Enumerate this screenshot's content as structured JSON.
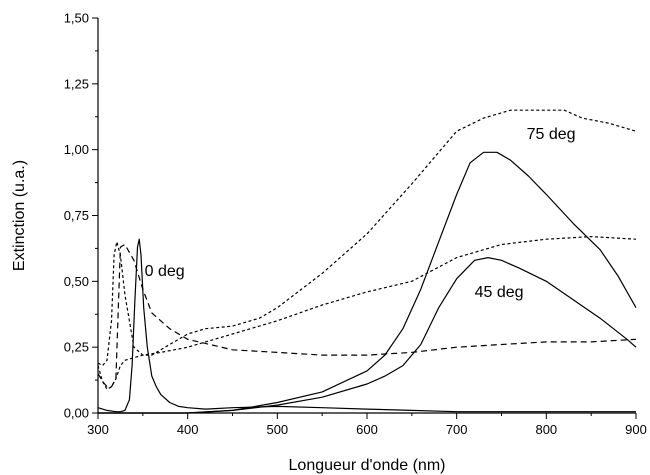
{
  "chart_data": {
    "type": "line",
    "title": "",
    "xlabel": "Longueur d'onde (nm)",
    "ylabel": "Extinction (u.a.)",
    "xlim": [
      300,
      900
    ],
    "ylim": [
      0,
      1.5
    ],
    "xticks": [
      300,
      400,
      500,
      600,
      700,
      800,
      900
    ],
    "yticks": [
      0,
      0.25,
      0.5,
      0.75,
      1.0,
      1.25,
      1.5
    ],
    "xtick_labels": [
      "300",
      "400",
      "500",
      "600",
      "700",
      "800",
      "900"
    ],
    "ytick_labels": [
      "0,00",
      "0,25",
      "0,50",
      "0,75",
      "1,00",
      "1,25",
      "1,50"
    ],
    "grid": false,
    "legend": "none",
    "annotations": [
      {
        "text": "0 deg",
        "x": 352,
        "y": 0.52
      },
      {
        "text": "45 deg",
        "x": 720,
        "y": 0.44
      },
      {
        "text": "75 deg",
        "x": 778,
        "y": 1.04
      }
    ],
    "series": [
      {
        "style": "solid",
        "x": [
          300,
          310,
          320,
          325,
          330,
          335,
          338,
          341,
          344,
          346,
          348,
          351,
          355,
          360,
          365,
          370,
          380,
          390,
          400,
          420,
          450,
          500,
          550,
          600,
          650,
          700,
          750,
          800,
          850,
          900
        ],
        "y": [
          0.02,
          0.01,
          0.005,
          0.005,
          0.01,
          0.05,
          0.18,
          0.42,
          0.63,
          0.66,
          0.6,
          0.4,
          0.25,
          0.14,
          0.1,
          0.07,
          0.04,
          0.025,
          0.02,
          0.015,
          0.02,
          0.025,
          0.02,
          0.015,
          0.01,
          0.005,
          0.005,
          0.005,
          0.005,
          0.005
        ]
      },
      {
        "style": "solid",
        "x": [
          300,
          350,
          400,
          450,
          500,
          550,
          600,
          620,
          640,
          660,
          680,
          700,
          720,
          735,
          750,
          770,
          800,
          830,
          860,
          890,
          900
        ],
        "y": [
          0.0,
          0.0,
          0.0,
          0.01,
          0.03,
          0.06,
          0.11,
          0.14,
          0.18,
          0.26,
          0.4,
          0.51,
          0.58,
          0.59,
          0.58,
          0.55,
          0.5,
          0.43,
          0.36,
          0.28,
          0.25
        ]
      },
      {
        "style": "solid",
        "x": [
          300,
          350,
          400,
          450,
          500,
          550,
          600,
          620,
          640,
          660,
          680,
          700,
          715,
          730,
          745,
          760,
          780,
          800,
          830,
          860,
          880,
          900
        ],
        "y": [
          0.0,
          0.0,
          0.0,
          0.01,
          0.04,
          0.08,
          0.16,
          0.22,
          0.32,
          0.47,
          0.65,
          0.83,
          0.95,
          0.99,
          0.99,
          0.96,
          0.9,
          0.83,
          0.72,
          0.62,
          0.52,
          0.4
        ]
      },
      {
        "style": "dashed",
        "x": [
          300,
          305,
          310,
          315,
          320,
          325,
          330,
          340,
          350,
          360,
          380,
          400,
          450,
          500,
          550,
          600,
          650,
          700,
          750,
          800,
          850,
          900
        ],
        "y": [
          0.15,
          0.12,
          0.1,
          0.1,
          0.13,
          0.63,
          0.64,
          0.58,
          0.47,
          0.38,
          0.32,
          0.28,
          0.24,
          0.23,
          0.22,
          0.22,
          0.23,
          0.25,
          0.26,
          0.27,
          0.27,
          0.28
        ]
      },
      {
        "style": "dotted",
        "x": [
          300,
          305,
          310,
          315,
          320,
          325,
          330,
          340,
          350,
          370,
          400,
          450,
          500,
          550,
          600,
          650,
          700,
          750,
          800,
          850,
          900
        ],
        "y": [
          0.18,
          0.12,
          0.09,
          0.1,
          0.13,
          0.18,
          0.2,
          0.21,
          0.22,
          0.23,
          0.25,
          0.3,
          0.35,
          0.41,
          0.46,
          0.5,
          0.59,
          0.64,
          0.66,
          0.67,
          0.66
        ]
      },
      {
        "style": "dotted",
        "x": [
          300,
          305,
          310,
          315,
          318,
          321,
          325,
          330,
          340,
          350,
          360,
          380,
          400,
          420,
          450,
          480,
          500,
          550,
          600,
          650,
          700,
          730,
          760,
          800,
          820,
          840,
          870,
          900
        ],
        "y": [
          0.19,
          0.18,
          0.2,
          0.35,
          0.6,
          0.65,
          0.6,
          0.45,
          0.25,
          0.22,
          0.22,
          0.26,
          0.3,
          0.32,
          0.33,
          0.36,
          0.4,
          0.53,
          0.68,
          0.87,
          1.07,
          1.12,
          1.15,
          1.15,
          1.15,
          1.12,
          1.1,
          1.07
        ]
      }
    ]
  }
}
